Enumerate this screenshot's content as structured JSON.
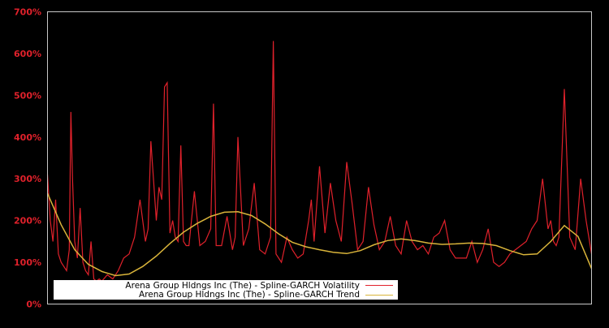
{
  "chart_data": {
    "type": "line",
    "title": "",
    "xlabel": "",
    "ylabel": "",
    "ylim": [
      0,
      700
    ],
    "y_ticks": [
      0,
      100,
      200,
      300,
      400,
      500,
      600,
      700
    ],
    "y_tick_labels": [
      "0%",
      "100%",
      "200%",
      "300%",
      "400%",
      "500%",
      "600%",
      "700%"
    ],
    "x_tick_labels": [],
    "grid": false,
    "legend_position": "lower-left",
    "background": "#000000",
    "axes_color": "#c8c8c8",
    "series": [
      {
        "name": "Arena Group Hldngs Inc (The) - Spline-GARCH Volatility",
        "color": "#e0212b",
        "x_norm": [
          0.0,
          0.005,
          0.01,
          0.015,
          0.02,
          0.025,
          0.03,
          0.035,
          0.04,
          0.043,
          0.046,
          0.05,
          0.055,
          0.06,
          0.065,
          0.07,
          0.075,
          0.08,
          0.085,
          0.09,
          0.095,
          0.1,
          0.11,
          0.12,
          0.13,
          0.14,
          0.15,
          0.16,
          0.17,
          0.18,
          0.185,
          0.19,
          0.2,
          0.205,
          0.21,
          0.215,
          0.22,
          0.225,
          0.23,
          0.235,
          0.24,
          0.245,
          0.25,
          0.255,
          0.26,
          0.27,
          0.28,
          0.29,
          0.3,
          0.305,
          0.31,
          0.32,
          0.33,
          0.34,
          0.345,
          0.35,
          0.36,
          0.37,
          0.38,
          0.39,
          0.4,
          0.41,
          0.415,
          0.42,
          0.43,
          0.44,
          0.45,
          0.46,
          0.47,
          0.48,
          0.485,
          0.49,
          0.5,
          0.51,
          0.52,
          0.53,
          0.54,
          0.55,
          0.56,
          0.57,
          0.58,
          0.59,
          0.6,
          0.61,
          0.62,
          0.63,
          0.64,
          0.65,
          0.66,
          0.67,
          0.68,
          0.69,
          0.7,
          0.71,
          0.72,
          0.73,
          0.74,
          0.75,
          0.76,
          0.77,
          0.78,
          0.79,
          0.8,
          0.81,
          0.82,
          0.83,
          0.84,
          0.85,
          0.86,
          0.87,
          0.88,
          0.89,
          0.9,
          0.91,
          0.92,
          0.925,
          0.93,
          0.935,
          0.94,
          0.95,
          0.96,
          0.97,
          0.98,
          0.99,
          1.0
        ],
        "values": [
          310,
          200,
          150,
          250,
          120,
          100,
          90,
          80,
          130,
          460,
          300,
          150,
          110,
          230,
          100,
          80,
          70,
          150,
          60,
          55,
          60,
          55,
          70,
          60,
          80,
          110,
          120,
          160,
          250,
          150,
          180,
          390,
          200,
          280,
          250,
          520,
          530,
          170,
          200,
          160,
          150,
          380,
          150,
          140,
          140,
          270,
          140,
          150,
          180,
          480,
          140,
          140,
          210,
          130,
          160,
          400,
          140,
          180,
          290,
          130,
          120,
          160,
          630,
          120,
          100,
          160,
          130,
          110,
          120,
          200,
          250,
          150,
          330,
          170,
          290,
          200,
          150,
          340,
          240,
          130,
          150,
          280,
          190,
          130,
          150,
          210,
          140,
          120,
          200,
          150,
          130,
          140,
          120,
          160,
          170,
          200,
          130,
          110,
          110,
          110,
          150,
          100,
          130,
          180,
          100,
          90,
          100,
          120,
          130,
          140,
          150,
          180,
          200,
          300,
          180,
          200,
          150,
          140,
          160,
          515,
          160,
          130,
          300,
          200,
          120,
          90,
          60
        ]
      },
      {
        "name": "Arena Group Hldngs Inc (The) - Spline-GARCH Trend",
        "color": "#d9b43a",
        "x_norm": [
          0.0,
          0.025,
          0.05,
          0.075,
          0.1,
          0.125,
          0.15,
          0.175,
          0.2,
          0.225,
          0.25,
          0.275,
          0.3,
          0.325,
          0.35,
          0.375,
          0.4,
          0.425,
          0.45,
          0.475,
          0.5,
          0.525,
          0.55,
          0.575,
          0.6,
          0.625,
          0.65,
          0.675,
          0.7,
          0.725,
          0.75,
          0.775,
          0.8,
          0.825,
          0.85,
          0.875,
          0.9,
          0.925,
          0.95,
          0.975,
          1.0
        ],
        "values": [
          265,
          190,
          130,
          95,
          78,
          68,
          72,
          90,
          115,
          145,
          172,
          193,
          210,
          220,
          221,
          212,
          192,
          168,
          148,
          137,
          130,
          124,
          121,
          128,
          142,
          152,
          156,
          152,
          146,
          143,
          144,
          146,
          145,
          140,
          128,
          118,
          120,
          150,
          188,
          162,
          85
        ]
      }
    ]
  },
  "legend": {
    "items": [
      {
        "label": "Arena Group Hldngs Inc (The) - Spline-GARCH Volatility",
        "color": "#e0212b"
      },
      {
        "label": "Arena Group Hldngs Inc (The) - Spline-GARCH Trend",
        "color": "#d9b43a"
      }
    ]
  }
}
